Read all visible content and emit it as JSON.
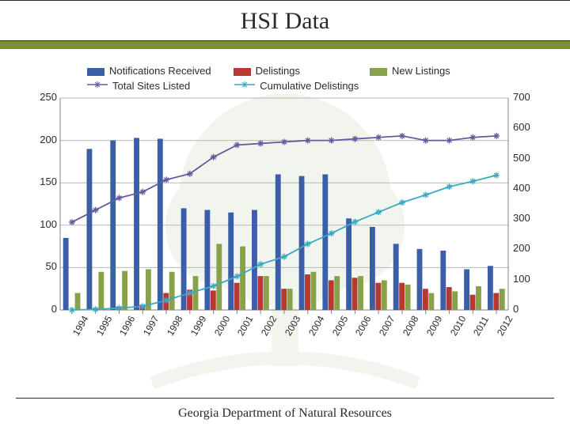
{
  "title": "HSI Data",
  "footer": "Georgia Department of Natural Resources",
  "legend": {
    "notifications": "Notifications Received",
    "delistings": "Delistings",
    "newListings": "New Listings",
    "totalSites": "Total Sites Listed",
    "cumDelistings": "Cumulative Delistings"
  },
  "chart": {
    "type": "combo-bar-line",
    "categories": [
      "1994",
      "1995",
      "1996",
      "1997",
      "1998",
      "1999",
      "2000",
      "2001",
      "2002",
      "2003",
      "2004",
      "2005",
      "2006",
      "2007",
      "2008",
      "2009",
      "2010",
      "2011",
      "2012"
    ],
    "left_axis": {
      "min": 0,
      "max": 250,
      "step": 50
    },
    "right_axis": {
      "min": 0,
      "max": 700,
      "step": 100
    },
    "series_bars": [
      {
        "key": "notifications",
        "axis": "left",
        "color": "#3a5ea8",
        "values": [
          85,
          190,
          200,
          203,
          202,
          120,
          118,
          115,
          118,
          160,
          158,
          160,
          108,
          98,
          78,
          72,
          70,
          48,
          52
        ]
      },
      {
        "key": "delistings",
        "axis": "left",
        "color": "#b73a32",
        "values": [
          0,
          2,
          4,
          6,
          20,
          24,
          23,
          32,
          40,
          25,
          42,
          35,
          38,
          32,
          32,
          25,
          27,
          18,
          20
        ]
      },
      {
        "key": "newListings",
        "axis": "left",
        "color": "#87a24a",
        "values": [
          20,
          45,
          46,
          48,
          45,
          40,
          78,
          75,
          40,
          25,
          45,
          40,
          40,
          35,
          30,
          20,
          22,
          28,
          25
        ]
      }
    ],
    "series_lines": [
      {
        "key": "totalSites",
        "axis": "right",
        "color": "#665a9e",
        "marker": "asterisk",
        "values": [
          290,
          330,
          370,
          390,
          430,
          450,
          505,
          545,
          550,
          555,
          560,
          560,
          565,
          570,
          575,
          560,
          560,
          570,
          575
        ]
      },
      {
        "key": "cumDelistings",
        "axis": "right",
        "color": "#3aa9c4",
        "marker": "asterisk",
        "values": [
          0,
          2,
          6,
          12,
          32,
          56,
          79,
          111,
          151,
          176,
          218,
          253,
          291,
          323,
          355,
          380,
          407,
          425,
          445
        ]
      }
    ],
    "grid_color": "#b8b8b8",
    "axis_color": "#808080",
    "background": "#ffffff",
    "bar_gap_ratio": 0.25,
    "label_fontsize": 13
  },
  "colors": {
    "olive": "#7d8f3a",
    "text": "#2b2b2b"
  }
}
